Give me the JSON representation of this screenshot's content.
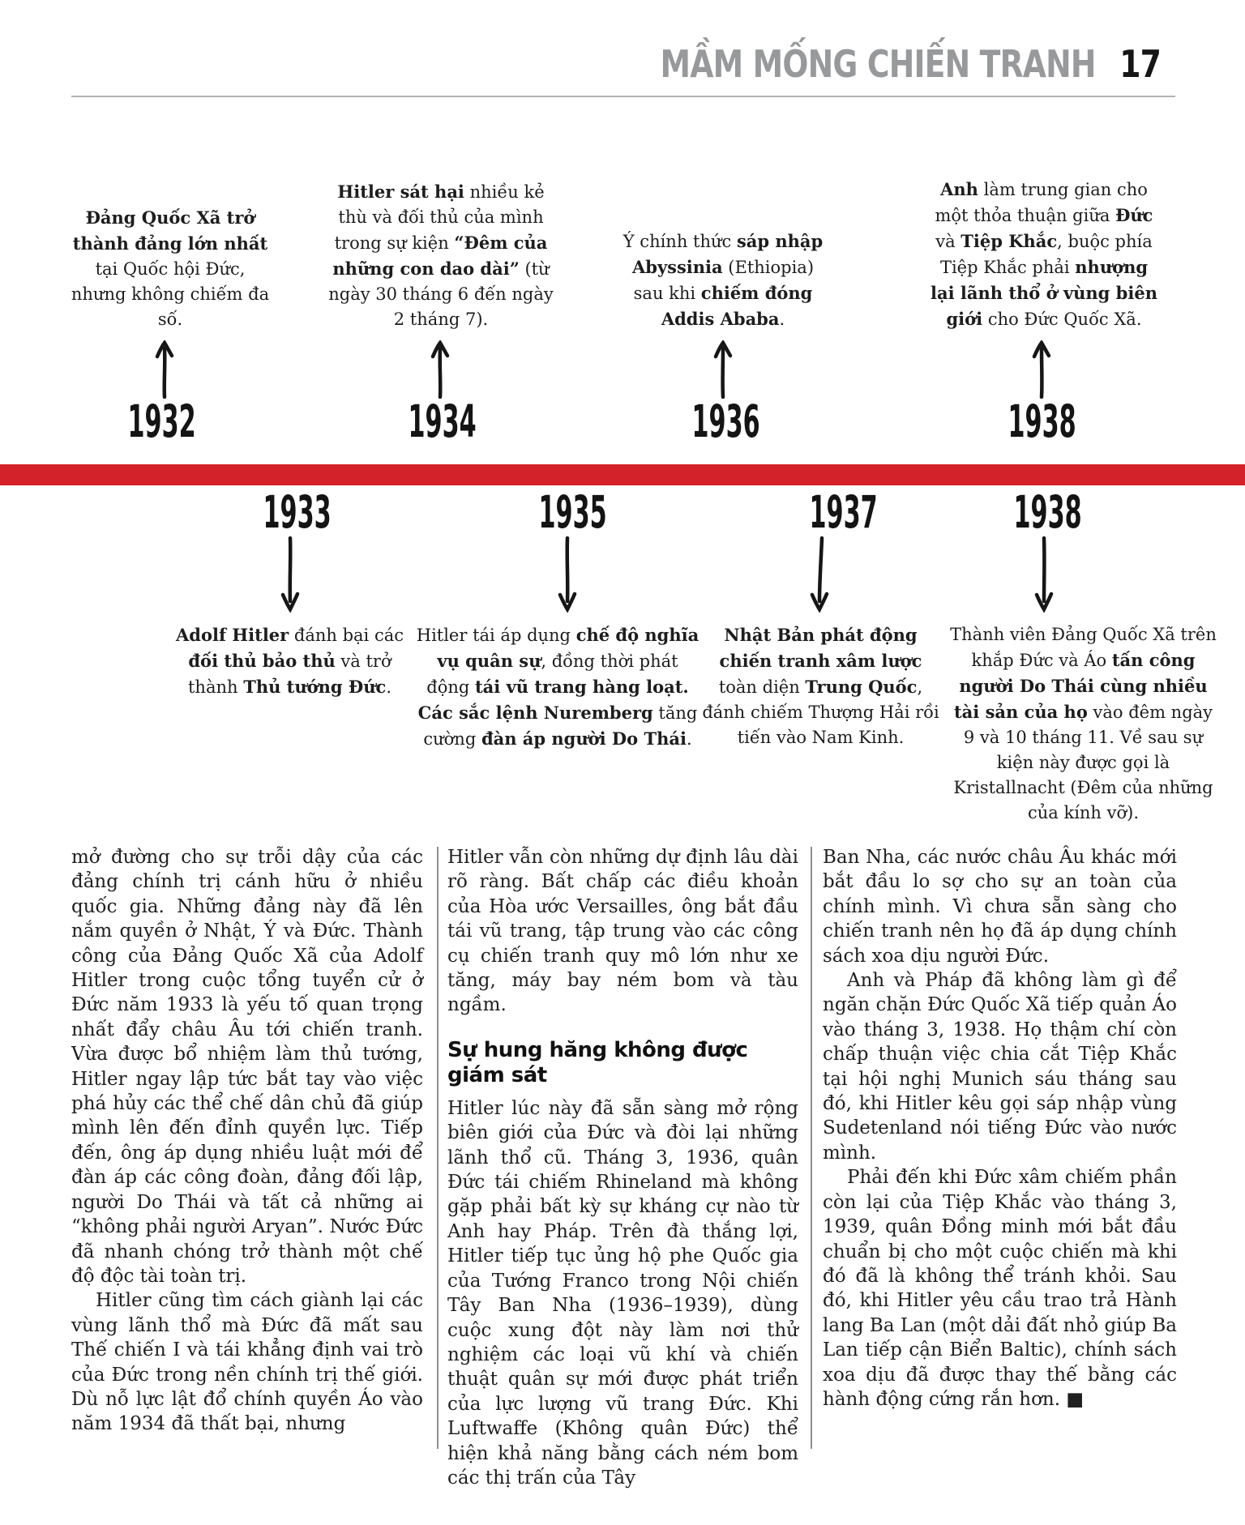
{
  "header": {
    "title": "MẦM MỐNG CHIẾN TRANH",
    "page_number": "17"
  },
  "timeline": {
    "bar_color": "#d3222a",
    "top_events": [
      {
        "year": "1932",
        "segments": [
          {
            "b": true,
            "t": "Đảng Quốc Xã trở thành đảng lớn nhất"
          },
          {
            "b": false,
            "t": " tại Quốc hội Đức, nhưng không chiếm đa số."
          }
        ]
      },
      {
        "year": "1934",
        "segments": [
          {
            "b": true,
            "t": "Hitler sát hại"
          },
          {
            "b": false,
            "t": " nhiều kẻ thù và đối thủ của mình trong sự kiện "
          },
          {
            "b": true,
            "t": "“Đêm của những con dao dài”"
          },
          {
            "b": false,
            "t": " (từ ngày 30 tháng 6 đến ngày 2 tháng 7)."
          }
        ]
      },
      {
        "year": "1936",
        "segments": [
          {
            "b": false,
            "t": "Ý chính thức "
          },
          {
            "b": true,
            "t": "sáp nhập Abyssinia"
          },
          {
            "b": false,
            "t": " (Ethiopia) sau khi "
          },
          {
            "b": true,
            "t": "chiếm đóng Addis Ababa"
          },
          {
            "b": false,
            "t": "."
          }
        ]
      },
      {
        "year": "1938",
        "segments": [
          {
            "b": true,
            "t": "Anh"
          },
          {
            "b": false,
            "t": " làm trung gian cho một thỏa thuận giữa "
          },
          {
            "b": true,
            "t": "Đức"
          },
          {
            "b": false,
            "t": " và "
          },
          {
            "b": true,
            "t": "Tiệp Khắc"
          },
          {
            "b": false,
            "t": ", buộc phía Tiệp Khắc phải "
          },
          {
            "b": true,
            "t": "nhượng lại lãnh thổ ở vùng biên giới"
          },
          {
            "b": false,
            "t": " cho Đức Quốc Xã."
          }
        ]
      }
    ],
    "bottom_events": [
      {
        "year": "1933",
        "segments": [
          {
            "b": true,
            "t": "Adolf Hitler"
          },
          {
            "b": false,
            "t": " đánh bại các "
          },
          {
            "b": true,
            "t": "đối thủ bảo thủ"
          },
          {
            "b": false,
            "t": " và trở thành "
          },
          {
            "b": true,
            "t": "Thủ tướng Đức"
          },
          {
            "b": false,
            "t": "."
          }
        ]
      },
      {
        "year": "1935",
        "segments": [
          {
            "b": false,
            "t": "Hitler tái áp dụng "
          },
          {
            "b": true,
            "t": "chế độ nghĩa vụ quân sự"
          },
          {
            "b": false,
            "t": ", đồng thời phát động "
          },
          {
            "b": true,
            "t": "tái vũ trang hàng loạt. Các sắc lệnh Nuremberg"
          },
          {
            "b": false,
            "t": " tăng cường "
          },
          {
            "b": true,
            "t": "đàn áp người Do Thái"
          },
          {
            "b": false,
            "t": "."
          }
        ]
      },
      {
        "year": "1937",
        "segments": [
          {
            "b": true,
            "t": "Nhật Bản phát động chiến tranh xâm lược"
          },
          {
            "b": false,
            "t": " toàn diện "
          },
          {
            "b": true,
            "t": "Trung Quốc"
          },
          {
            "b": false,
            "t": ", đánh chiếm Thượng Hải rồi tiến vào Nam Kinh."
          }
        ]
      },
      {
        "year": "1938",
        "segments": [
          {
            "b": false,
            "t": "Thành viên Đảng Quốc Xã trên khắp Đức và Áo "
          },
          {
            "b": true,
            "t": "tấn công người Do Thái cùng nhiều tài sản của họ"
          },
          {
            "b": false,
            "t": " vào đêm ngày 9 và 10 tháng 11. Về sau sự kiện này được gọi là Kristallnacht (Đêm của những của kính vỡ)."
          }
        ]
      }
    ]
  },
  "article": {
    "column1": {
      "p1": "mở đường cho sự trỗi dậy của các đảng chính trị cánh hữu ở nhiều quốc gia. Những đảng này đã lên nắm quyền ở Nhật, Ý và Đức. Thành công của Đảng Quốc Xã của Adolf Hitler trong cuộc tổng tuyển cử ở Đức năm 1933 là yếu tố quan trọng nhất đẩy châu Âu tới chiến tranh. Vừa được bổ nhiệm làm thủ tướng, Hitler ngay lập tức bắt tay vào việc phá hủy các thể chế dân chủ đã giúp mình lên đến đỉnh quyền lực. Tiếp đến, ông áp dụng nhiều luật mới để đàn áp các công đoàn, đảng đối lập, người Do Thái và tất cả những ai “không phải người Aryan”. Nước Đức đã nhanh chóng trở thành một chế độ độc tài toàn trị.",
      "p2": "Hitler cũng tìm cách giành lại các vùng lãnh thổ mà Đức đã mất sau Thế chiến I và tái khẳng định vai trò của Đức trong nền chính trị thế giới. Dù nỗ lực lật đổ chính quyền Áo vào năm 1934 đã thất bại, nhưng"
    },
    "column2": {
      "p1": "Hitler vẫn còn những dự định lâu dài rõ ràng. Bất chấp các điều khoản của Hòa ước Versailles, ông bắt đầu tái vũ trang, tập trung vào các công cụ chiến tranh quy mô lớn như xe tăng, máy bay ném bom và tàu ngầm.",
      "heading": "Sự hung hăng không được giám sát",
      "p2": "Hitler lúc này đã sẵn sàng mở rộng biên giới của Đức và đòi lại những lãnh thổ cũ. Tháng 3, 1936, quân Đức tái chiếm Rhineland mà không gặp phải bất kỳ sự kháng cự nào từ Anh hay Pháp. Trên đà thắng lợi, Hitler tiếp tục ủng hộ phe Quốc gia của Tướng Franco trong Nội chiến Tây Ban Nha (1936–1939), dùng cuộc xung đột này làm nơi thử nghiệm các loại vũ khí và chiến thuật quân sự mới được phát triển của lực lượng vũ trang Đức. Khi Luftwaffe (Không quân Đức) thể hiện khả năng bằng cách ném bom các thị trấn của Tây"
    },
    "column3": {
      "p1": "Ban Nha, các nước châu Âu khác mới bắt đầu lo sợ cho sự an toàn của chính mình. Vì chưa sẵn sàng cho chiến tranh nên họ đã áp dụng chính sách xoa dịu người Đức.",
      "p2": "Anh và Pháp đã không làm gì để ngăn chặn Đức Quốc Xã tiếp quản Áo vào tháng 3, 1938. Họ thậm chí còn chấp thuận việc chia cắt Tiệp Khắc tại hội nghị Munich sáu tháng sau đó, khi Hitler kêu gọi sáp nhập vùng Sudetenland nói tiếng Đức vào nước mình.",
      "p3": "Phải đến khi Đức xâm chiếm phần còn lại của Tiệp Khắc vào tháng 3, 1939, quân Đồng minh mới bắt đầu chuẩn bị cho một cuộc chiến mà khi đó đã là không thể tránh khỏi. Sau đó, khi Hitler yêu cầu trao trả Hành lang Ba Lan (một dải đất nhỏ giúp Ba Lan tiếp cận Biển Baltic), chính sách xoa dịu đã được thay thế bằng các hành động cứng rắn hơn. ■"
    }
  }
}
